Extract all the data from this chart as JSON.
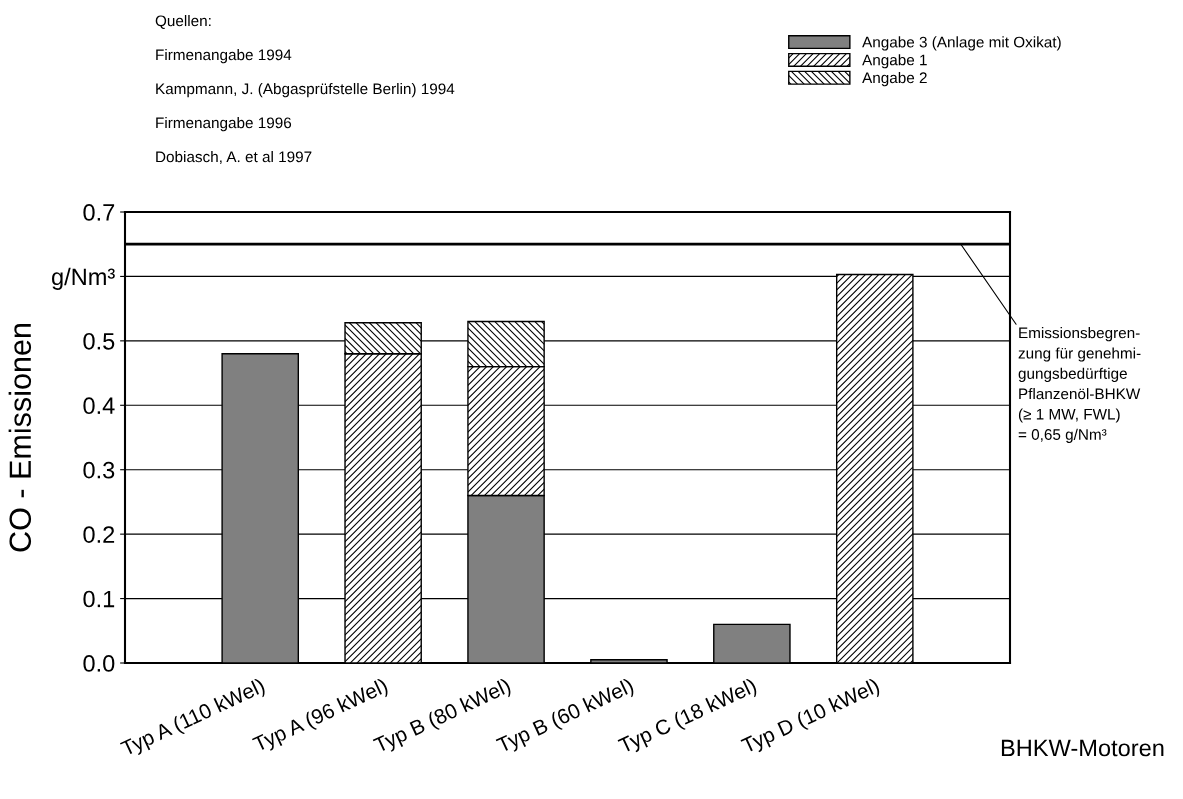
{
  "chart_data": {
    "type": "bar",
    "xlabel": "BHKW-Motoren",
    "ylabel": "CO - Emissionen",
    "categories": [
      "Typ A (110 kWel)",
      "Typ A (96 kWel)",
      "Typ B (80 kWel)",
      "Typ B (60 kWel)",
      "Typ C (18 kWel)",
      "Typ D (10 kWel)"
    ],
    "series": [
      {
        "name": "Angabe 3 (Anlage mit Oxikat)",
        "color": "#808080",
        "values": [
          0.48,
          null,
          0.26,
          0.005,
          0.06,
          null
        ]
      },
      {
        "name": "Angabe 1",
        "color": "#000000",
        "values": [
          null,
          0.48,
          0.2,
          null,
          null,
          0.603
        ]
      },
      {
        "name": "Angabe 2",
        "color": "#000000",
        "values": [
          null,
          0.048,
          0.07,
          null,
          null,
          null
        ]
      }
    ],
    "stacked": true,
    "ylim": [
      0,
      0.7
    ],
    "yticks": [
      {
        "value": 0,
        "label": "0.0"
      },
      0.1,
      0.2,
      0.3,
      0.4,
      0.5,
      {
        "value": 0.6,
        "label": "g/Nm³"
      },
      0.7
    ],
    "grid": "y",
    "legend": "top right",
    "ref_lines": [
      {
        "axis": "y",
        "value": 0.65,
        "label": "Emissionsbegren-\nzung für genehmi-\ngungsbedürftige\nPflanzenöl-BHKW\n(≥ 1 MW, FWL)\n= 0,65 g/Nm³",
        "color": "#000000"
      }
    ],
    "annotations": [
      "Quellen:",
      "Firmenangabe 1994",
      "Kampmann, J. (Abgasprüfstelle Berlin) 1994",
      "Firmenangabe 1996",
      "Dobiasch, A. et al 1997"
    ]
  }
}
